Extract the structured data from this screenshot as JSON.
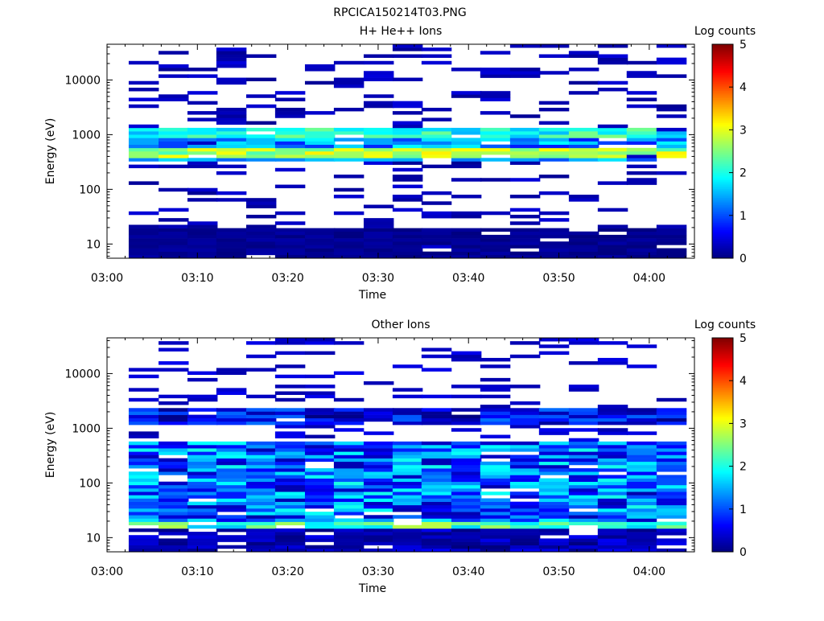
{
  "figure_title": "RPCICA150214T03.PNG",
  "chart_data": [
    {
      "type": "heatmap",
      "title": "H+ He++ Ions",
      "xlabel": "Time",
      "ylabel": "Energy (eV)",
      "x_ticks": [
        "03:00",
        "03:10",
        "03:20",
        "03:30",
        "03:40",
        "03:50",
        "04:00"
      ],
      "x_range_min": [
        0,
        65
      ],
      "y_ticks": [
        10,
        100,
        1000,
        10000
      ],
      "y_range_ev": [
        5.5,
        45000
      ],
      "y_scale": "log",
      "colorbar": {
        "label": "Log counts",
        "ticks": [
          0,
          1,
          2,
          3,
          4,
          5
        ],
        "range": [
          0,
          5
        ]
      },
      "time_bins_min": [
        2.4,
        5.7,
        8.9,
        12.1,
        15.4,
        18.6,
        21.9,
        25.1,
        28.4,
        31.6,
        34.8,
        38.1,
        41.3,
        44.6,
        47.8,
        51.1,
        54.3,
        57.5,
        60.8
      ],
      "sparse_background_level": 0.1,
      "bands": [
        {
          "e_min": 900,
          "e_max": 1400,
          "level": 2.0,
          "variation": 0.5
        },
        {
          "e_min": 550,
          "e_max": 900,
          "level": 1.3,
          "variation": 0.6
        },
        {
          "e_min": 380,
          "e_max": 550,
          "level": 2.7,
          "variation": 0.5
        },
        {
          "e_min": 330,
          "e_max": 380,
          "level": 1.4,
          "variation": 0.4
        },
        {
          "e_min": 5.5,
          "e_max": 20,
          "level": 0.1,
          "variation": 0.1
        }
      ]
    },
    {
      "type": "heatmap",
      "title": "Other Ions",
      "xlabel": "Time",
      "ylabel": "Energy (eV)",
      "x_ticks": [
        "03:00",
        "03:10",
        "03:20",
        "03:30",
        "03:40",
        "03:50",
        "04:00"
      ],
      "x_range_min": [
        0,
        65
      ],
      "y_ticks": [
        10,
        100,
        1000,
        10000
      ],
      "y_range_ev": [
        5.5,
        45000
      ],
      "y_scale": "log",
      "colorbar": {
        "label": "Log counts",
        "ticks": [
          0,
          1,
          2,
          3,
          4,
          5
        ],
        "range": [
          0,
          5
        ]
      },
      "time_bins_min": [
        2.4,
        5.7,
        8.9,
        12.1,
        15.4,
        18.6,
        21.9,
        25.1,
        28.4,
        31.6,
        34.8,
        38.1,
        41.3,
        44.6,
        47.8,
        51.1,
        54.3,
        57.5,
        60.8
      ],
      "sparse_background_level": 0.2,
      "bands": [
        {
          "e_min": 1100,
          "e_max": 2500,
          "level": 0.6,
          "variation": 0.6
        },
        {
          "e_min": 20,
          "e_max": 600,
          "level": 1.1,
          "variation": 0.9
        },
        {
          "e_min": 15,
          "e_max": 28,
          "level": 2.2,
          "variation": 0.6
        },
        {
          "e_min": 5.5,
          "e_max": 15,
          "level": 0.3,
          "variation": 0.3
        }
      ]
    }
  ]
}
